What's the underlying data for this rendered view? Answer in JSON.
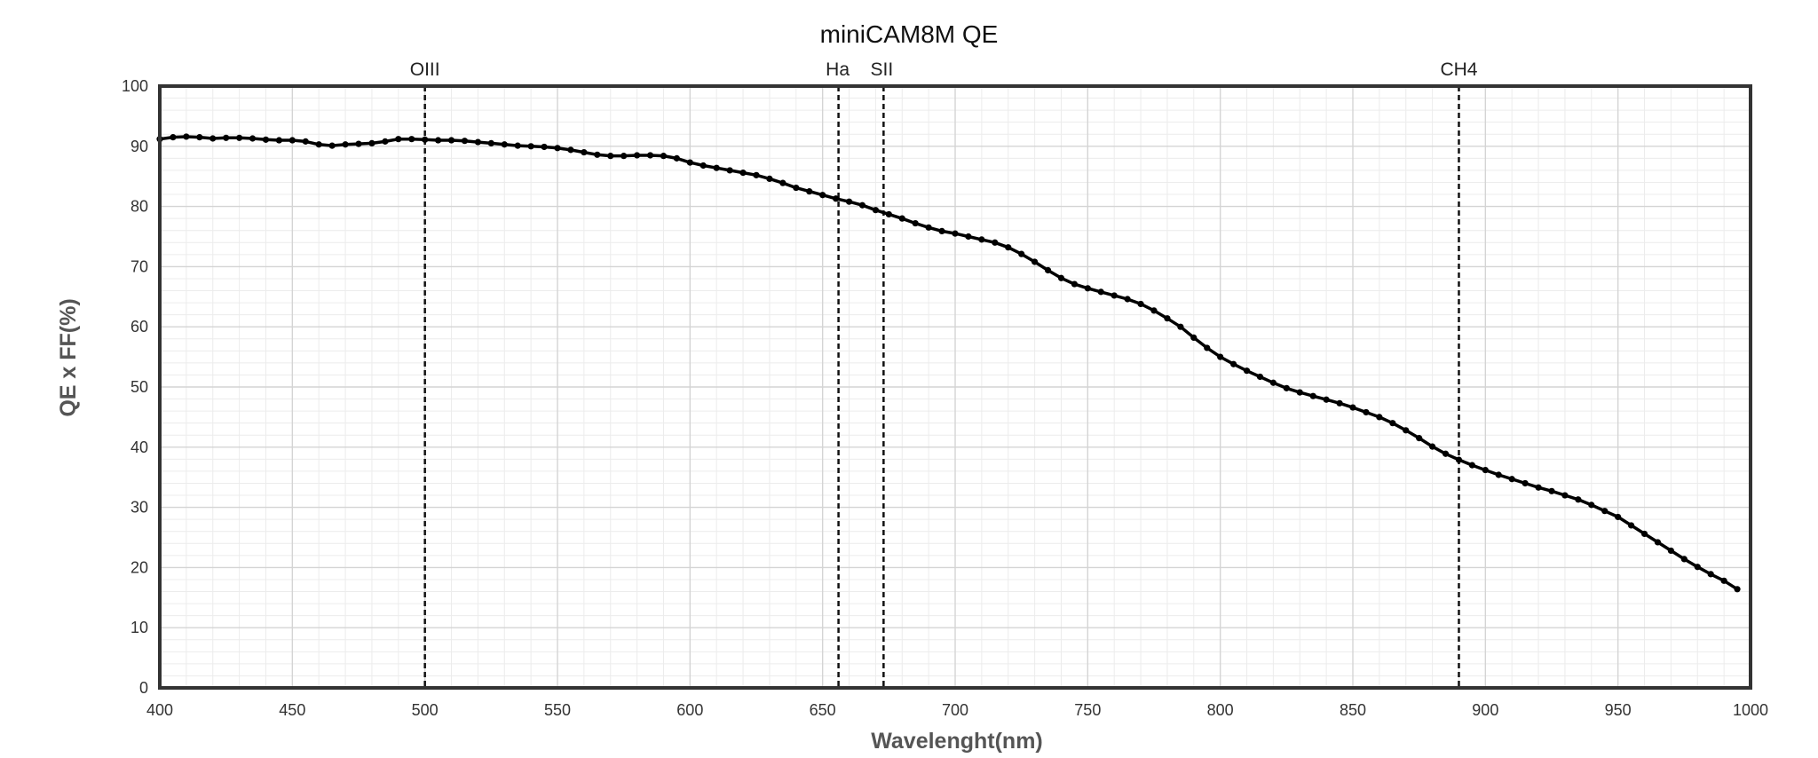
{
  "chart_data": {
    "type": "line",
    "title": "miniCAM8M QE",
    "xlabel": "Wavelenght(nm)",
    "ylabel": "QE x FF(%)",
    "xlim": [
      400,
      1000
    ],
    "ylim": [
      0,
      100
    ],
    "x_ticks": [
      "400",
      "450",
      "500",
      "550",
      "600",
      "650",
      "700",
      "750",
      "800",
      "850",
      "900",
      "950",
      "1000"
    ],
    "y_ticks": [
      "0",
      "10",
      "20",
      "30",
      "40",
      "50",
      "60",
      "70",
      "80",
      "90",
      "100"
    ],
    "grid": true,
    "reference_lines": [
      {
        "label": "OIII",
        "x": 500
      },
      {
        "label": "Ha",
        "x": 656
      },
      {
        "label": "SII",
        "x": 673
      },
      {
        "label": "CH4",
        "x": 890
      }
    ],
    "series": [
      {
        "color": "#000000",
        "points": [
          [
            400,
            91.2
          ],
          [
            405,
            91.5
          ],
          [
            410,
            91.6
          ],
          [
            415,
            91.5
          ],
          [
            420,
            91.3
          ],
          [
            425,
            91.4
          ],
          [
            430,
            91.4
          ],
          [
            435,
            91.3
          ],
          [
            440,
            91.1
          ],
          [
            445,
            91.0
          ],
          [
            450,
            91.0
          ],
          [
            455,
            90.8
          ],
          [
            460,
            90.3
          ],
          [
            465,
            90.1
          ],
          [
            470,
            90.3
          ],
          [
            475,
            90.4
          ],
          [
            480,
            90.5
          ],
          [
            485,
            90.8
          ],
          [
            490,
            91.2
          ],
          [
            495,
            91.2
          ],
          [
            500,
            91.1
          ],
          [
            505,
            91.0
          ],
          [
            510,
            91.0
          ],
          [
            515,
            90.9
          ],
          [
            520,
            90.7
          ],
          [
            525,
            90.5
          ],
          [
            530,
            90.3
          ],
          [
            535,
            90.1
          ],
          [
            540,
            90.0
          ],
          [
            545,
            89.9
          ],
          [
            550,
            89.7
          ],
          [
            555,
            89.4
          ],
          [
            560,
            89.0
          ],
          [
            565,
            88.6
          ],
          [
            570,
            88.4
          ],
          [
            575,
            88.4
          ],
          [
            580,
            88.5
          ],
          [
            585,
            88.5
          ],
          [
            590,
            88.4
          ],
          [
            595,
            88.0
          ],
          [
            600,
            87.3
          ],
          [
            605,
            86.8
          ],
          [
            610,
            86.4
          ],
          [
            615,
            86.0
          ],
          [
            620,
            85.6
          ],
          [
            625,
            85.2
          ],
          [
            630,
            84.6
          ],
          [
            635,
            83.9
          ],
          [
            640,
            83.1
          ],
          [
            645,
            82.5
          ],
          [
            650,
            81.9
          ],
          [
            655,
            81.3
          ],
          [
            660,
            80.8
          ],
          [
            665,
            80.2
          ],
          [
            670,
            79.4
          ],
          [
            675,
            78.7
          ],
          [
            680,
            78.0
          ],
          [
            685,
            77.2
          ],
          [
            690,
            76.5
          ],
          [
            695,
            75.9
          ],
          [
            700,
            75.5
          ],
          [
            705,
            75.0
          ],
          [
            710,
            74.5
          ],
          [
            715,
            74.0
          ],
          [
            720,
            73.2
          ],
          [
            725,
            72.1
          ],
          [
            730,
            70.8
          ],
          [
            735,
            69.4
          ],
          [
            740,
            68.1
          ],
          [
            745,
            67.1
          ],
          [
            750,
            66.4
          ],
          [
            755,
            65.8
          ],
          [
            760,
            65.2
          ],
          [
            765,
            64.6
          ],
          [
            770,
            63.8
          ],
          [
            775,
            62.7
          ],
          [
            780,
            61.4
          ],
          [
            785,
            60.0
          ],
          [
            790,
            58.2
          ],
          [
            795,
            56.5
          ],
          [
            800,
            55.0
          ],
          [
            805,
            53.8
          ],
          [
            810,
            52.7
          ],
          [
            815,
            51.7
          ],
          [
            820,
            50.7
          ],
          [
            825,
            49.8
          ],
          [
            830,
            49.1
          ],
          [
            835,
            48.5
          ],
          [
            840,
            47.9
          ],
          [
            845,
            47.3
          ],
          [
            850,
            46.6
          ],
          [
            855,
            45.8
          ],
          [
            860,
            45.0
          ],
          [
            865,
            44.0
          ],
          [
            870,
            42.8
          ],
          [
            875,
            41.5
          ],
          [
            880,
            40.1
          ],
          [
            885,
            38.9
          ],
          [
            890,
            37.9
          ],
          [
            895,
            37.0
          ],
          [
            900,
            36.2
          ],
          [
            905,
            35.4
          ],
          [
            910,
            34.7
          ],
          [
            915,
            34.0
          ],
          [
            920,
            33.3
          ],
          [
            925,
            32.7
          ],
          [
            930,
            32.0
          ],
          [
            935,
            31.3
          ],
          [
            940,
            30.4
          ],
          [
            945,
            29.4
          ],
          [
            950,
            28.4
          ],
          [
            955,
            27.0
          ],
          [
            960,
            25.6
          ],
          [
            965,
            24.2
          ],
          [
            970,
            22.8
          ],
          [
            975,
            21.4
          ],
          [
            980,
            20.1
          ],
          [
            985,
            18.9
          ],
          [
            990,
            17.8
          ],
          [
            995,
            16.4
          ]
        ]
      }
    ]
  }
}
